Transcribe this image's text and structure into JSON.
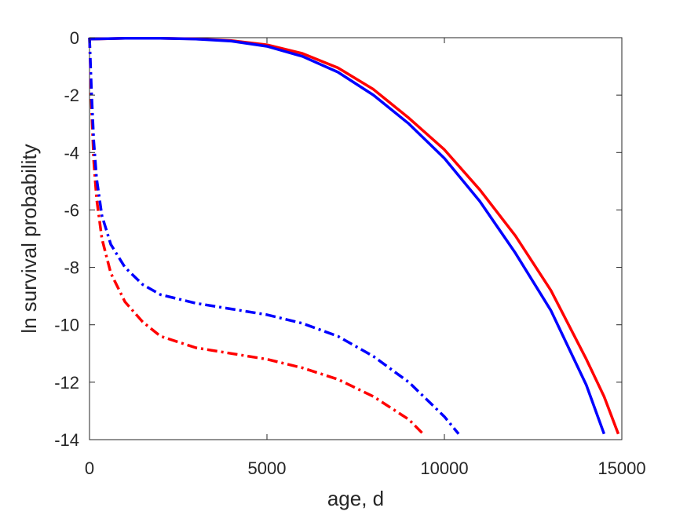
{
  "chart_data": {
    "type": "line",
    "title": "",
    "xlabel": "age, d",
    "ylabel": "ln survival probability",
    "xlim": [
      0,
      15000
    ],
    "ylim": [
      -14,
      0
    ],
    "xticks": [
      "0",
      "5000",
      "10000",
      "15000"
    ],
    "yticks": [
      "0",
      "-2",
      "-4",
      "-6",
      "-8",
      "-10",
      "-12",
      "-14"
    ],
    "grid": false,
    "legend": "none",
    "series": [
      {
        "color": "#ff0000",
        "style": "solid",
        "points": [
          [
            0,
            -0.05
          ],
          [
            1000,
            -0.02
          ],
          [
            2000,
            -0.02
          ],
          [
            3000,
            -0.04
          ],
          [
            4000,
            -0.1
          ],
          [
            5000,
            -0.25
          ],
          [
            6000,
            -0.55
          ],
          [
            7000,
            -1.05
          ],
          [
            8000,
            -1.8
          ],
          [
            9000,
            -2.8
          ],
          [
            10000,
            -3.9
          ],
          [
            11000,
            -5.3
          ],
          [
            12000,
            -6.9
          ],
          [
            13000,
            -8.8
          ],
          [
            14000,
            -11.2
          ],
          [
            14500,
            -12.5
          ],
          [
            14900,
            -13.8
          ]
        ]
      },
      {
        "color": "#0000ff",
        "style": "solid",
        "points": [
          [
            0,
            -0.05
          ],
          [
            1000,
            -0.02
          ],
          [
            2000,
            -0.02
          ],
          [
            3000,
            -0.05
          ],
          [
            4000,
            -0.12
          ],
          [
            5000,
            -0.3
          ],
          [
            6000,
            -0.65
          ],
          [
            7000,
            -1.2
          ],
          [
            8000,
            -2.0
          ],
          [
            9000,
            -3.0
          ],
          [
            10000,
            -4.2
          ],
          [
            11000,
            -5.7
          ],
          [
            12000,
            -7.5
          ],
          [
            13000,
            -9.5
          ],
          [
            14000,
            -12.1
          ],
          [
            14500,
            -13.8
          ]
        ]
      },
      {
        "color": "#ff0000",
        "style": "dashdot",
        "points": [
          [
            0,
            0
          ],
          [
            60,
            -2.5
          ],
          [
            120,
            -4.3
          ],
          [
            200,
            -5.6
          ],
          [
            350,
            -7.0
          ],
          [
            600,
            -8.2
          ],
          [
            1000,
            -9.2
          ],
          [
            1500,
            -9.9
          ],
          [
            2000,
            -10.4
          ],
          [
            3000,
            -10.8
          ],
          [
            4000,
            -11.0
          ],
          [
            5000,
            -11.2
          ],
          [
            6000,
            -11.5
          ],
          [
            7000,
            -11.9
          ],
          [
            8000,
            -12.5
          ],
          [
            9000,
            -13.3
          ],
          [
            9400,
            -13.8
          ]
        ]
      },
      {
        "color": "#0000ff",
        "style": "dashdot",
        "points": [
          [
            0,
            0
          ],
          [
            60,
            -2.0
          ],
          [
            120,
            -3.6
          ],
          [
            200,
            -4.9
          ],
          [
            350,
            -6.2
          ],
          [
            600,
            -7.2
          ],
          [
            1000,
            -8.0
          ],
          [
            1500,
            -8.6
          ],
          [
            2000,
            -8.95
          ],
          [
            3000,
            -9.25
          ],
          [
            4000,
            -9.45
          ],
          [
            5000,
            -9.65
          ],
          [
            6000,
            -9.95
          ],
          [
            7000,
            -10.4
          ],
          [
            8000,
            -11.1
          ],
          [
            9000,
            -12.0
          ],
          [
            10000,
            -13.2
          ],
          [
            10400,
            -13.8
          ]
        ]
      }
    ]
  }
}
